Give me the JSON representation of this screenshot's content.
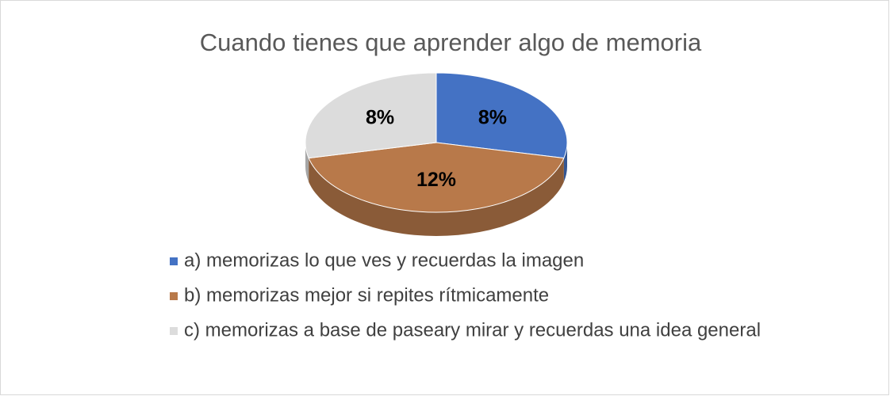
{
  "chart_data": {
    "type": "pie",
    "title": "Cuando tienes que aprender algo de memoria",
    "categories": [
      "a) memorizas lo que ves y recuerdas la imagen",
      "b) memorizas mejor si repites rítmicamente",
      "c) memorizas a base de paseary mirar y recuerdas una idea general"
    ],
    "values": [
      8,
      12,
      8
    ],
    "value_labels": [
      "8%",
      "12%",
      "8%"
    ],
    "colors": [
      "#4472c4",
      "#b8794a",
      "#dcdcdc"
    ]
  }
}
